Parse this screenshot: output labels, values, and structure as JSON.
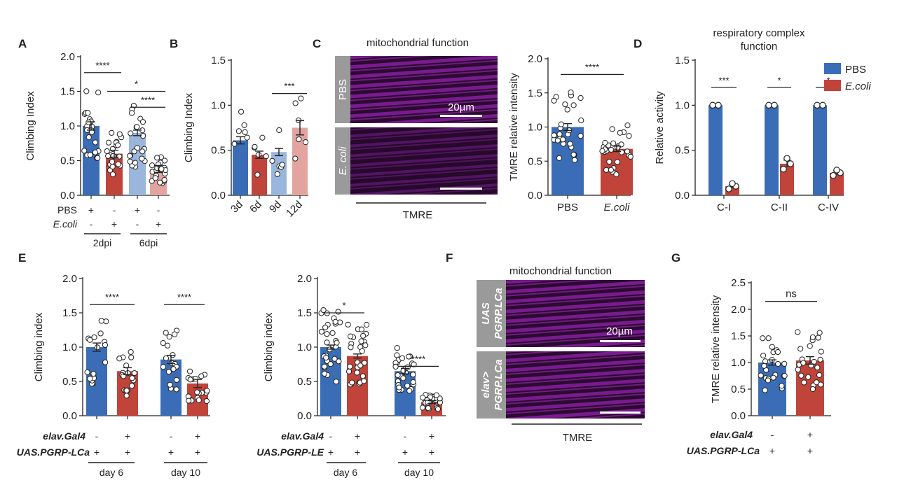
{
  "colors": {
    "blue": "#3a6db5",
    "red": "#c0443a",
    "lightblue": "#9bb6dd",
    "lightred": "#e3a4a0",
    "magenta": "#b52bd0",
    "imagebg": "#2b0b30"
  },
  "labels": {
    "A": "A",
    "B": "B",
    "C": "C",
    "D": "D",
    "E": "E",
    "F": "F",
    "G": "G"
  },
  "panelC": {
    "title": "mitochondrial function",
    "pbs_label": "PBS",
    "ecoli_label": "E. coli",
    "scale": "20µm",
    "stain": "TMRE"
  },
  "panelF": {
    "title": "mitochondrial function",
    "top_label_1": "UAS",
    "top_label_2": "PGRP.LCa",
    "bottom_label_1": "elav>",
    "bottom_label_2": "PGRP.LCa",
    "scale": "20µm",
    "stain": "TMRE"
  },
  "panelD": {
    "title_line1": "respiratory complex",
    "title_line2": "function"
  },
  "legend": {
    "pbs": "PBS",
    "ecoli": "E.coli"
  },
  "rows": {
    "A": {
      "r1_label": "PBS",
      "r1": [
        "+",
        "-",
        "+",
        "-"
      ],
      "r2_label": "E.coli",
      "r2": [
        "-",
        "+",
        "-",
        "+"
      ],
      "groups": [
        "2dpi",
        "6dpi"
      ]
    },
    "E1": {
      "r1_label": "elav.Gal4",
      "r1": [
        "-",
        "+",
        "-",
        "+"
      ],
      "r2_label": "UAS.PGRP-LCa",
      "r2": [
        "+",
        "+",
        "+",
        "+"
      ],
      "groups": [
        "day 6",
        "day 10"
      ]
    },
    "E2": {
      "r1_label": "elav.Gal4",
      "r1": [
        "-",
        "+",
        "-",
        "+"
      ],
      "r2_label": "UAS.PGRP-LE",
      "r2": [
        "+",
        "+",
        "+",
        "+"
      ],
      "groups": [
        "day 6",
        "day 10"
      ]
    },
    "G": {
      "r1_label": "elav.Gal4",
      "r1": [
        "-",
        "+"
      ],
      "r2_label": "UAS.PGRP-LCa",
      "r2": [
        "+",
        "+"
      ]
    }
  },
  "chart_data": [
    {
      "id": "A",
      "type": "bar",
      "ylabel": "Climbing Index",
      "ylim": [
        0,
        2.0
      ],
      "yticks": [
        "0.0",
        "0.5",
        "1.0",
        "1.5",
        "2.0"
      ],
      "ytick_values": [
        0,
        0.5,
        1.0,
        1.5,
        2.0
      ],
      "values": [
        1.0,
        0.6,
        0.9,
        0.38
      ],
      "errors": [
        0.06,
        0.05,
        0.04,
        0.05
      ],
      "colors": [
        "blue",
        "red",
        "lightblue",
        "lightred"
      ],
      "sig": [
        {
          "from": 0,
          "to": 1,
          "y": 1.77,
          "label": "****"
        },
        {
          "from": 1,
          "to": 3,
          "y": 1.5,
          "label": "*"
        },
        {
          "from": 2,
          "to": 3,
          "y": 1.27,
          "label": "****"
        }
      ]
    },
    {
      "id": "B",
      "type": "bar",
      "ylabel": "Climbing Index",
      "categories": [
        "3d",
        "6d",
        "9d",
        "12d"
      ],
      "ylim": [
        0,
        1.5
      ],
      "yticks": [
        "0.0",
        "0.5",
        "1.0",
        "1.5"
      ],
      "ytick_values": [
        0,
        0.5,
        1.0,
        1.5
      ],
      "values": [
        0.61,
        0.45,
        0.48,
        0.75
      ],
      "errors": [
        0.04,
        0.04,
        0.04,
        0.08
      ],
      "colors": [
        "blue",
        "red",
        "lightblue",
        "lightred"
      ],
      "sig": [
        {
          "from": 2,
          "to": 3,
          "y": 1.13,
          "label": "***"
        }
      ]
    },
    {
      "id": "C",
      "type": "bar",
      "ylabel": "TMRE relative intensity",
      "categories": [
        "PBS",
        "E.coli"
      ],
      "ylim": [
        0,
        2.0
      ],
      "yticks": [
        "0.0",
        "0.5",
        "1.0",
        "1.5",
        "2.0"
      ],
      "ytick_values": [
        0,
        0.5,
        1.0,
        1.5,
        2.0
      ],
      "values": [
        1.0,
        0.68
      ],
      "errors": [
        0.05,
        0.04
      ],
      "colors": [
        "blue",
        "red"
      ],
      "sig": [
        {
          "from": 0,
          "to": 1,
          "y": 1.77,
          "label": "****"
        }
      ]
    },
    {
      "id": "D",
      "type": "bar",
      "ylabel": "Relative activity",
      "categories": [
        "C-I",
        "C-II",
        "C-IV"
      ],
      "series": [
        {
          "name": "PBS",
          "values": [
            1.0,
            1.0,
            1.0
          ]
        },
        {
          "name": "E.coli",
          "values": [
            0.1,
            0.35,
            0.25
          ]
        }
      ],
      "errors": [
        [
          0,
          0,
          0
        ],
        [
          0.02,
          0.04,
          0.02
        ]
      ],
      "ylim": [
        0,
        1.5
      ],
      "yticks": [
        "0.0",
        "0.5",
        "1.0",
        "1.5"
      ],
      "ytick_values": [
        0,
        0.5,
        1.0,
        1.5
      ],
      "sig": [
        {
          "group": 0,
          "y": 1.2,
          "label": "***"
        },
        {
          "group": 1,
          "y": 1.2,
          "label": "*"
        },
        {
          "group": 2,
          "y": 1.2,
          "label": "*"
        }
      ]
    },
    {
      "id": "E1",
      "type": "bar",
      "ylabel": "Climbing index",
      "ylim": [
        0,
        2.0
      ],
      "yticks": [
        "0.0",
        "0.5",
        "1.0",
        "1.5",
        "2.0"
      ],
      "ytick_values": [
        0,
        0.5,
        1.0,
        1.5,
        2.0
      ],
      "values": [
        1.0,
        0.65,
        0.82,
        0.47
      ],
      "errors": [
        0.06,
        0.05,
        0.06,
        0.06
      ],
      "colors": [
        "blue",
        "red",
        "blue",
        "red"
      ],
      "sig": [
        {
          "from": 0,
          "to": 1,
          "y": 1.62,
          "label": "****"
        },
        {
          "from": 2,
          "to": 3,
          "y": 1.62,
          "label": "****"
        }
      ]
    },
    {
      "id": "E2",
      "type": "bar",
      "ylabel": "Climbing index",
      "ylim": [
        0,
        2.0
      ],
      "yticks": [
        "0.0",
        "0.5",
        "1.0",
        "1.5",
        "2.0"
      ],
      "ytick_values": [
        0,
        0.5,
        1.0,
        1.5,
        2.0
      ],
      "values": [
        1.0,
        0.87,
        0.65,
        0.2
      ],
      "errors": [
        0.03,
        0.03,
        0.04,
        0.02
      ],
      "colors": [
        "blue",
        "red",
        "blue",
        "red"
      ],
      "sig": [
        {
          "from": 0,
          "to": 1,
          "y": 1.5,
          "label": "*"
        },
        {
          "from": 2,
          "to": 3,
          "y": 0.72,
          "label": "****"
        }
      ]
    },
    {
      "id": "G",
      "type": "bar",
      "ylabel": "TMRE relative intensity",
      "ylim": [
        0,
        2.5
      ],
      "yticks": [
        "0.0",
        "0.5",
        "1.0",
        "1.5",
        "2.0",
        "2.5"
      ],
      "ytick_values": [
        0,
        0.5,
        1.0,
        1.5,
        2.0,
        2.5
      ],
      "values": [
        1.0,
        1.04
      ],
      "errors": [
        0.05,
        0.07
      ],
      "colors": [
        "blue",
        "red"
      ],
      "sig": [
        {
          "from": 0,
          "to": 1,
          "y": 2.15,
          "label": "ns"
        }
      ]
    }
  ]
}
